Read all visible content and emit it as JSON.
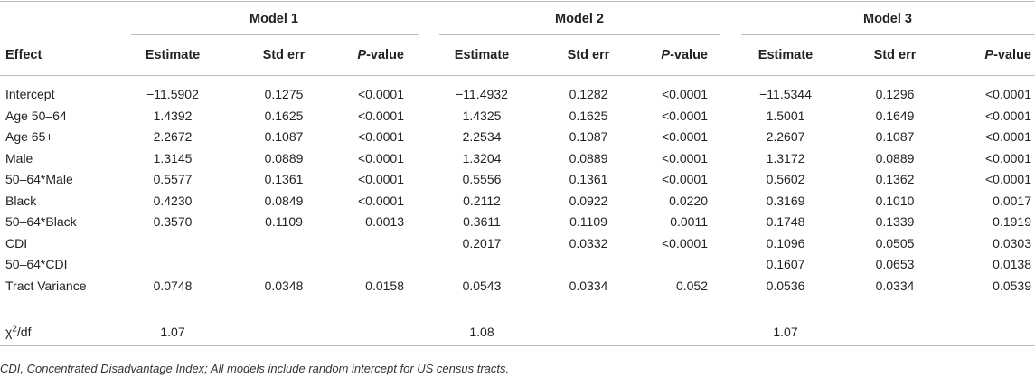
{
  "models": [
    "Model 1",
    "Model 2",
    "Model 3"
  ],
  "effect_header": "Effect",
  "col_estimate": "Estimate",
  "col_stderr": "Std err",
  "col_p_prefix": "P",
  "col_p_suffix": "-value",
  "chi_base": "χ",
  "chi_sup": "2",
  "chi_tail": "/df",
  "rows": [
    {
      "effect": "Intercept",
      "m1": [
        "−11.5902",
        "0.1275",
        "<0.0001"
      ],
      "m2": [
        "−11.4932",
        "0.1282",
        "<0.0001"
      ],
      "m3": [
        "−11.5344",
        "0.1296",
        "<0.0001"
      ]
    },
    {
      "effect": "Age 50–64",
      "m1": [
        "1.4392",
        "0.1625",
        "<0.0001"
      ],
      "m2": [
        "1.4325",
        "0.1625",
        "<0.0001"
      ],
      "m3": [
        "1.5001",
        "0.1649",
        "<0.0001"
      ]
    },
    {
      "effect": "Age 65+",
      "m1": [
        "2.2672",
        "0.1087",
        "<0.0001"
      ],
      "m2": [
        "2.2534",
        "0.1087",
        "<0.0001"
      ],
      "m3": [
        "2.2607",
        "0.1087",
        "<0.0001"
      ]
    },
    {
      "effect": "Male",
      "m1": [
        "1.3145",
        "0.0889",
        "<0.0001"
      ],
      "m2": [
        "1.3204",
        "0.0889",
        "<0.0001"
      ],
      "m3": [
        "1.3172",
        "0.0889",
        "<0.0001"
      ]
    },
    {
      "effect": "50–64*Male",
      "m1": [
        "0.5577",
        "0.1361",
        "<0.0001"
      ],
      "m2": [
        "0.5556",
        "0.1361",
        "<0.0001"
      ],
      "m3": [
        "0.5602",
        "0.1362",
        "<0.0001"
      ]
    },
    {
      "effect": "Black",
      "m1": [
        "0.4230",
        "0.0849",
        "<0.0001"
      ],
      "m2": [
        "0.2112",
        "0.0922",
        "0.0220"
      ],
      "m3": [
        "0.3169",
        "0.1010",
        "0.0017"
      ]
    },
    {
      "effect": "50–64*Black",
      "m1": [
        "0.3570",
        "0.1109",
        "0.0013"
      ],
      "m2": [
        "0.3611",
        "0.1109",
        "0.0011"
      ],
      "m3": [
        "0.1748",
        "0.1339",
        "0.1919"
      ]
    },
    {
      "effect": "CDI",
      "m1": [
        "",
        "",
        ""
      ],
      "m2": [
        "0.2017",
        "0.0332",
        "<0.0001"
      ],
      "m3": [
        "0.1096",
        "0.0505",
        "0.0303"
      ]
    },
    {
      "effect": "50–64*CDI",
      "m1": [
        "",
        "",
        ""
      ],
      "m2": [
        "",
        "",
        ""
      ],
      "m3": [
        "0.1607",
        "0.0653",
        "0.0138"
      ]
    },
    {
      "effect": "Tract Variance",
      "m1": [
        "0.0748",
        "0.0348",
        "0.0158"
      ],
      "m2": [
        "0.0543",
        "0.0334",
        "0.052"
      ],
      "m3": [
        "0.0536",
        "0.0334",
        "0.0539"
      ]
    }
  ],
  "chi_values": [
    "1.07",
    "1.08",
    "1.07"
  ],
  "footnote": "CDI, Concentrated Disadvantage Index; All models include random intercept for US census tracts."
}
